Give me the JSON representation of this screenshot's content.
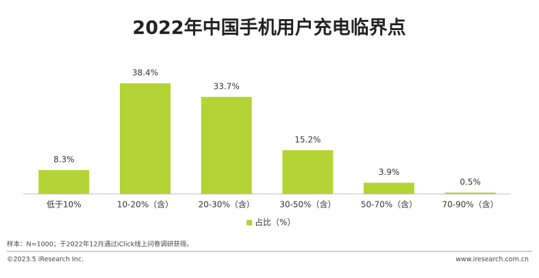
{
  "chart_data": {
    "type": "bar",
    "title": "2022年中国手机用户充电临界点",
    "categories": [
      "低于10%",
      "10-20%（含）",
      "20-30%（含）",
      "30-50%（含）",
      "50-70%（含）",
      "70-90%（含）"
    ],
    "series": [
      {
        "name": "占比（%）",
        "color": "#b5d334",
        "values": [
          8.3,
          38.4,
          33.7,
          15.2,
          3.9,
          0.5
        ],
        "value_labels": [
          "8.3%",
          "38.4%",
          "33.7%",
          "15.2%",
          "3.9%",
          "0.5%"
        ]
      }
    ],
    "legend": "bottom"
  },
  "footer": {
    "note": "样本：N=1000；于2022年12月通过iClick线上问卷调研获得。",
    "copyright": "©2023.5 iResearch Inc.",
    "website": "www.iresearch.com.cn"
  }
}
